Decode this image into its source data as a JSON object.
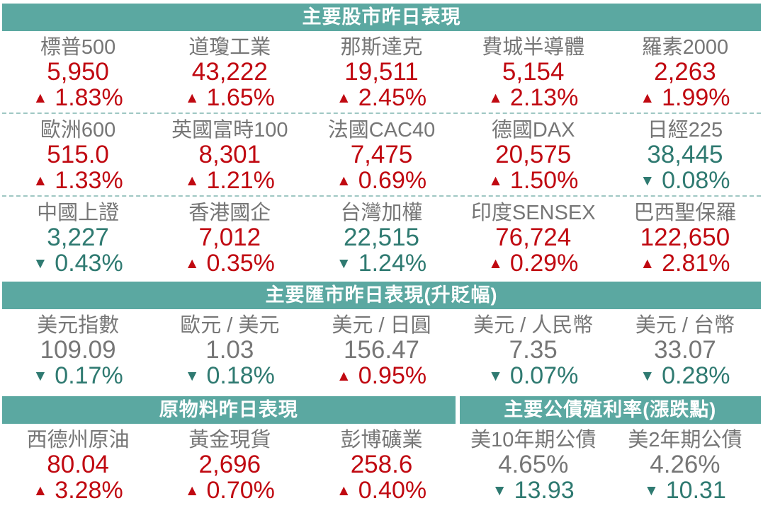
{
  "colors": {
    "header_bg": "#5BA8A1",
    "up": "#C00911",
    "down": "#2F7A71",
    "neutral": "#767676",
    "divider": "#9FC7C3"
  },
  "symbols": {
    "up_arrow": "▲",
    "down_arrow": "▼"
  },
  "chart_data": [
    {
      "type": "table",
      "title": "主要股市昨日表現",
      "columns": [
        "name",
        "value",
        "change",
        "direction"
      ],
      "items_per_row": 5,
      "rows": [
        {
          "name": "標普500",
          "value": "5,950",
          "change": "1.83%",
          "direction": "up",
          "value_tone": "up"
        },
        {
          "name": "道瓊工業",
          "value": "43,222",
          "change": "1.65%",
          "direction": "up",
          "value_tone": "up"
        },
        {
          "name": "那斯達克",
          "value": "19,511",
          "change": "2.45%",
          "direction": "up",
          "value_tone": "up"
        },
        {
          "name": "費城半導體",
          "value": "5,154",
          "change": "2.13%",
          "direction": "up",
          "value_tone": "up"
        },
        {
          "name": "羅素2000",
          "value": "2,263",
          "change": "1.99%",
          "direction": "up",
          "value_tone": "up"
        },
        {
          "name": "歐洲600",
          "value": "515.0",
          "change": "1.33%",
          "direction": "up",
          "value_tone": "up"
        },
        {
          "name": "英國富時100",
          "value": "8,301",
          "change": "1.21%",
          "direction": "up",
          "value_tone": "up"
        },
        {
          "name": "法國CAC40",
          "value": "7,475",
          "change": "0.69%",
          "direction": "up",
          "value_tone": "up"
        },
        {
          "name": "德國DAX",
          "value": "20,575",
          "change": "1.50%",
          "direction": "up",
          "value_tone": "up"
        },
        {
          "name": "日經225",
          "value": "38,445",
          "change": "0.08%",
          "direction": "down",
          "value_tone": "down"
        },
        {
          "name": "中國上證",
          "value": "3,227",
          "change": "0.43%",
          "direction": "down",
          "value_tone": "down"
        },
        {
          "name": "香港國企",
          "value": "7,012",
          "change": "0.35%",
          "direction": "up",
          "value_tone": "up"
        },
        {
          "name": "台灣加權",
          "value": "22,515",
          "change": "1.24%",
          "direction": "down",
          "value_tone": "down"
        },
        {
          "name": "印度SENSEX",
          "value": "76,724",
          "change": "0.29%",
          "direction": "up",
          "value_tone": "up"
        },
        {
          "name": "巴西聖保羅",
          "value": "122,650",
          "change": "2.81%",
          "direction": "up",
          "value_tone": "up"
        }
      ]
    },
    {
      "type": "table",
      "title": "主要匯市昨日表現(升貶幅)",
      "columns": [
        "name",
        "value",
        "change",
        "direction"
      ],
      "items_per_row": 5,
      "rows": [
        {
          "name": "美元指數",
          "value": "109.09",
          "change": "0.17%",
          "direction": "down",
          "value_tone": "neutral"
        },
        {
          "name": "歐元 / 美元",
          "value": "1.03",
          "change": "0.18%",
          "direction": "down",
          "value_tone": "neutral"
        },
        {
          "name": "美元 / 日圓",
          "value": "156.47",
          "change": "0.95%",
          "direction": "up",
          "value_tone": "neutral"
        },
        {
          "name": "美元 / 人民幣",
          "value": "7.35",
          "change": "0.07%",
          "direction": "down",
          "value_tone": "neutral"
        },
        {
          "name": "美元 / 台幣",
          "value": "33.07",
          "change": "0.28%",
          "direction": "down",
          "value_tone": "neutral"
        }
      ]
    },
    {
      "type": "table",
      "title": "原物料昨日表現",
      "columns": [
        "name",
        "value",
        "change",
        "direction"
      ],
      "items_per_row": 3,
      "rows": [
        {
          "name": "西德州原油",
          "value": "80.04",
          "change": "3.28%",
          "direction": "up",
          "value_tone": "up"
        },
        {
          "name": "黃金現貨",
          "value": "2,696",
          "change": "0.70%",
          "direction": "up",
          "value_tone": "up"
        },
        {
          "name": "彭博礦業",
          "value": "258.6",
          "change": "0.40%",
          "direction": "up",
          "value_tone": "up"
        }
      ]
    },
    {
      "type": "table",
      "title": "主要公債殖利率(漲跌點)",
      "columns": [
        "name",
        "value",
        "change",
        "direction"
      ],
      "items_per_row": 2,
      "rows": [
        {
          "name": "美10年期公債",
          "value": "4.65%",
          "change": "13.93",
          "direction": "down",
          "value_tone": "neutral"
        },
        {
          "name": "美2年期公債",
          "value": "4.26%",
          "change": "10.31",
          "direction": "down",
          "value_tone": "neutral"
        }
      ]
    }
  ]
}
